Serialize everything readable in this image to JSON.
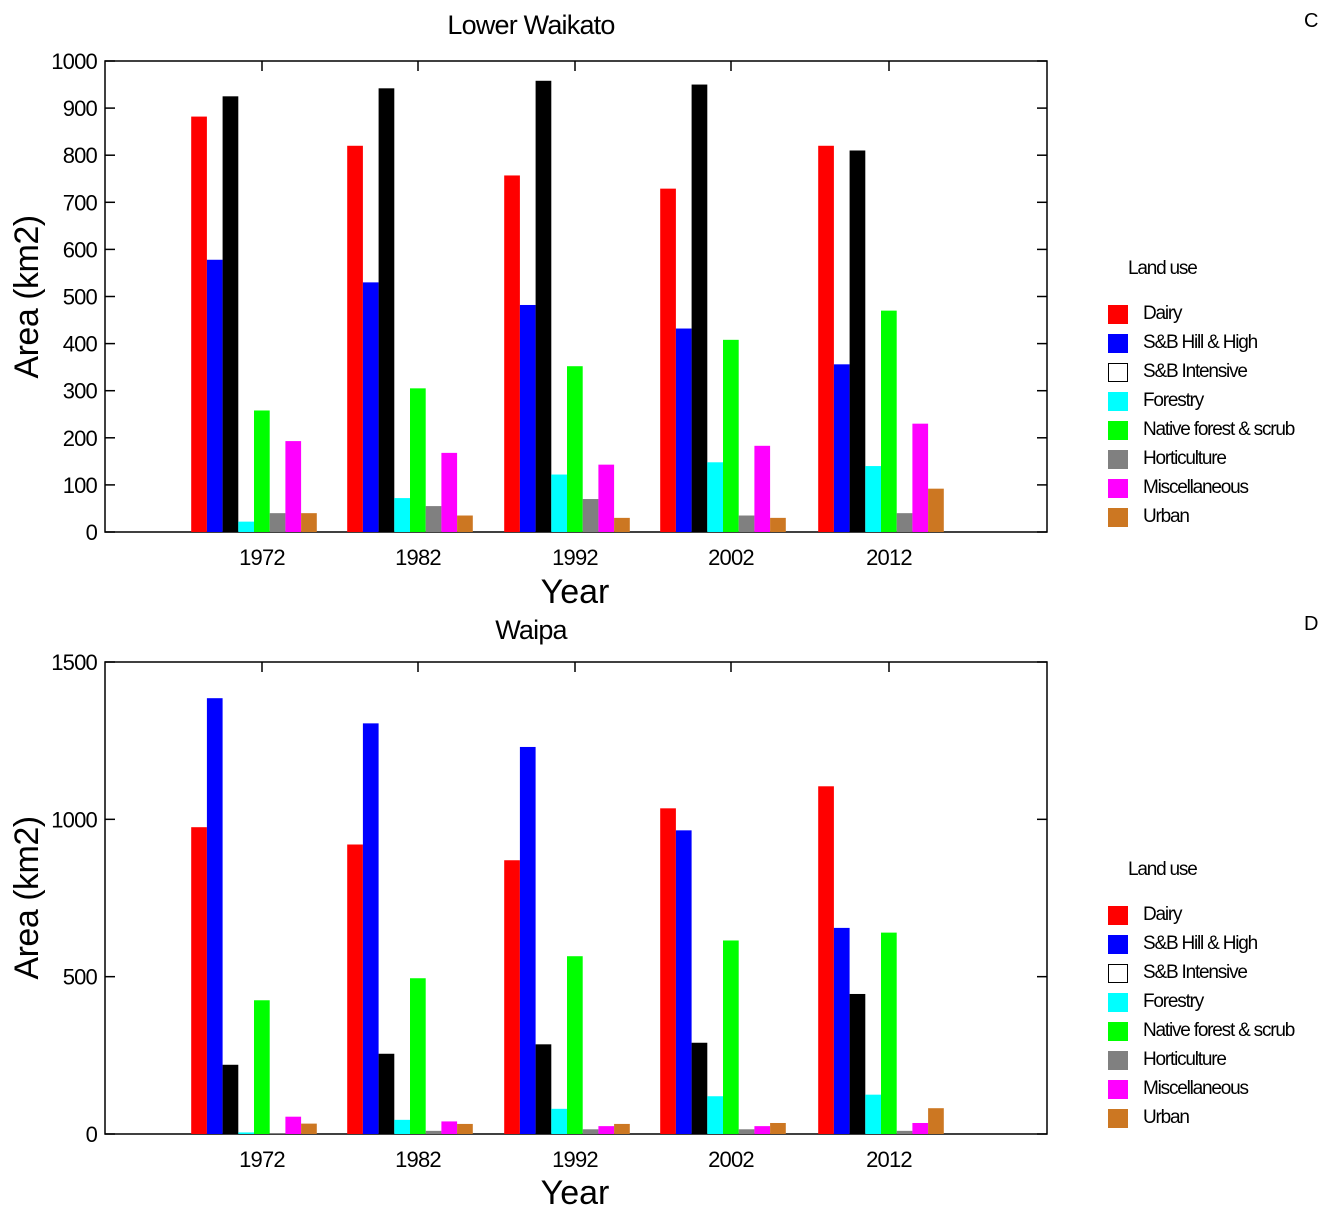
{
  "panels": {
    "top_letter": "C",
    "bottom_letter": "D"
  },
  "legend_top": {
    "title": "Land use",
    "items": [
      {
        "label": "Dairy",
        "color": "#ff0000",
        "style": "filled"
      },
      {
        "label": "S&B Hill & High",
        "color": "#0000ff",
        "style": "filled"
      },
      {
        "label": "S&B Intensive",
        "color": "#000000",
        "style": "outline"
      },
      {
        "label": "Forestry",
        "color": "#00ffff",
        "style": "filled"
      },
      {
        "label": "Native forest & scrub",
        "color": "#00ff00",
        "style": "filled"
      },
      {
        "label": "Horticulture",
        "color": "#808080",
        "style": "filled"
      },
      {
        "label": "Miscellaneous",
        "color": "#ff00ff",
        "style": "filled"
      },
      {
        "label": "Urban",
        "color": "#cc7722",
        "style": "filled"
      }
    ]
  },
  "legend_bottom": {
    "title": "Land use",
    "items": [
      {
        "label": "Dairy",
        "color": "#ff0000",
        "style": "filled"
      },
      {
        "label": "S&B Hill & High",
        "color": "#0000ff",
        "style": "filled"
      },
      {
        "label": "S&B Intensive",
        "color": "#000000",
        "style": "outline"
      },
      {
        "label": "Forestry",
        "color": "#00ffff",
        "style": "filled"
      },
      {
        "label": "Native forest & scrub",
        "color": "#00ff00",
        "style": "filled"
      },
      {
        "label": "Horticulture",
        "color": "#808080",
        "style": "filled"
      },
      {
        "label": "Miscellaneous",
        "color": "#ff00ff",
        "style": "filled"
      },
      {
        "label": "Urban",
        "color": "#cc7722",
        "style": "filled"
      }
    ]
  },
  "chart_data": [
    {
      "type": "bar",
      "title": "Lower Waikato",
      "xlabel": "Year",
      "ylabel": "Area (km2)",
      "ylim": [
        0,
        1000
      ],
      "yticks": [
        0,
        100,
        200,
        300,
        400,
        500,
        600,
        700,
        800,
        900,
        1000
      ],
      "categories": [
        "1972",
        "1982",
        "1992",
        "2002",
        "2012"
      ],
      "grid": false,
      "legend_position": "right",
      "series": [
        {
          "name": "Dairy",
          "color": "#ff0000",
          "values": [
            882,
            820,
            757,
            729,
            820
          ]
        },
        {
          "name": "S&B Hill & High",
          "color": "#0000ff",
          "values": [
            578,
            530,
            482,
            432,
            356
          ]
        },
        {
          "name": "S&B Intensive",
          "color": "#000000",
          "values": [
            925,
            942,
            958,
            950,
            810
          ]
        },
        {
          "name": "Forestry",
          "color": "#00ffff",
          "values": [
            22,
            72,
            122,
            148,
            140
          ]
        },
        {
          "name": "Native forest & scrub",
          "color": "#00ff00",
          "values": [
            258,
            305,
            352,
            408,
            470
          ]
        },
        {
          "name": "Horticulture",
          "color": "#808080",
          "values": [
            40,
            55,
            70,
            35,
            40
          ]
        },
        {
          "name": "Miscellaneous",
          "color": "#ff00ff",
          "values": [
            193,
            168,
            143,
            183,
            230
          ]
        },
        {
          "name": "Urban",
          "color": "#cc7722",
          "values": [
            40,
            35,
            30,
            30,
            92
          ]
        }
      ]
    },
    {
      "type": "bar",
      "title": "Waipa",
      "xlabel": "Year",
      "ylabel": "Area (km2)",
      "ylim": [
        0,
        1500
      ],
      "yticks": [
        0,
        500,
        1000,
        1500
      ],
      "categories": [
        "1972",
        "1982",
        "1992",
        "2002",
        "2012"
      ],
      "grid": false,
      "legend_position": "right",
      "series": [
        {
          "name": "Dairy",
          "color": "#ff0000",
          "values": [
            975,
            920,
            870,
            1035,
            1105
          ]
        },
        {
          "name": "S&B Hill & High",
          "color": "#0000ff",
          "values": [
            1385,
            1305,
            1230,
            965,
            655
          ]
        },
        {
          "name": "S&B Intensive",
          "color": "#000000",
          "values": [
            220,
            255,
            285,
            290,
            445
          ]
        },
        {
          "name": "Forestry",
          "color": "#00ffff",
          "values": [
            5,
            45,
            80,
            120,
            125
          ]
        },
        {
          "name": "Native forest & scrub",
          "color": "#00ff00",
          "values": [
            425,
            495,
            565,
            615,
            640
          ]
        },
        {
          "name": "Horticulture",
          "color": "#808080",
          "values": [
            3,
            10,
            15,
            15,
            10
          ]
        },
        {
          "name": "Miscellaneous",
          "color": "#ff00ff",
          "values": [
            55,
            40,
            25,
            25,
            35
          ]
        },
        {
          "name": "Urban",
          "color": "#cc7722",
          "values": [
            33,
            32,
            32,
            35,
            82
          ]
        }
      ]
    }
  ]
}
